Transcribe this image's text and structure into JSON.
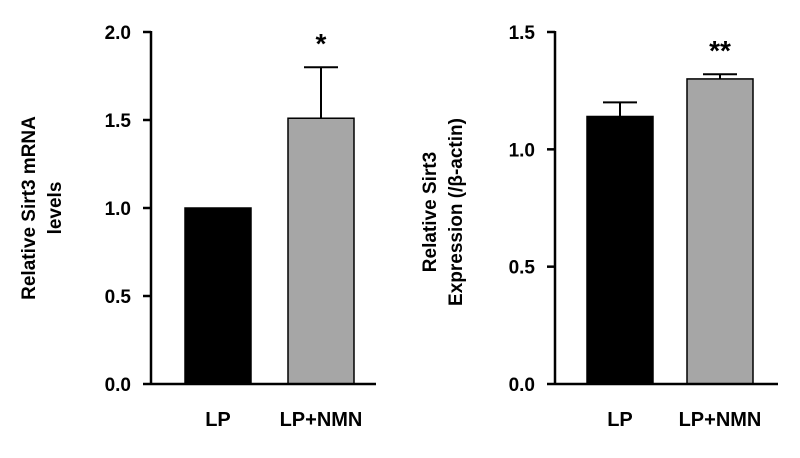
{
  "chart_data": [
    {
      "type": "bar",
      "title": "",
      "xlabel": "",
      "ylabel_lines": [
        "Relative Sirt3 mRNA",
        "levels"
      ],
      "ylim": [
        0,
        2.0
      ],
      "yticks": [
        0.0,
        0.5,
        1.0,
        1.5,
        2.0
      ],
      "ytick_labels": [
        "0.0",
        "0.5",
        "1.0",
        "1.5",
        "2.0"
      ],
      "categories": [
        "LP",
        "LP+NMN"
      ],
      "values": [
        1.0,
        1.51
      ],
      "errors": [
        0,
        0.29
      ],
      "bar_colors": [
        "#000000",
        "#a6a6a6"
      ],
      "significance": [
        "",
        "*"
      ],
      "grid": false
    },
    {
      "type": "bar",
      "title": "",
      "xlabel": "",
      "ylabel_lines": [
        "Relative Sirt3",
        "Expression (/β-actin)"
      ],
      "ylim": [
        0,
        1.5
      ],
      "yticks": [
        0.0,
        0.5,
        1.0,
        1.5
      ],
      "ytick_labels": [
        "0.0",
        "0.5",
        "1.0",
        "1.5"
      ],
      "categories": [
        "LP",
        "LP+NMN"
      ],
      "values": [
        1.14,
        1.3
      ],
      "errors": [
        0.06,
        0.02
      ],
      "bar_colors": [
        "#000000",
        "#a6a6a6"
      ],
      "significance": [
        "",
        "**"
      ],
      "grid": false
    }
  ]
}
